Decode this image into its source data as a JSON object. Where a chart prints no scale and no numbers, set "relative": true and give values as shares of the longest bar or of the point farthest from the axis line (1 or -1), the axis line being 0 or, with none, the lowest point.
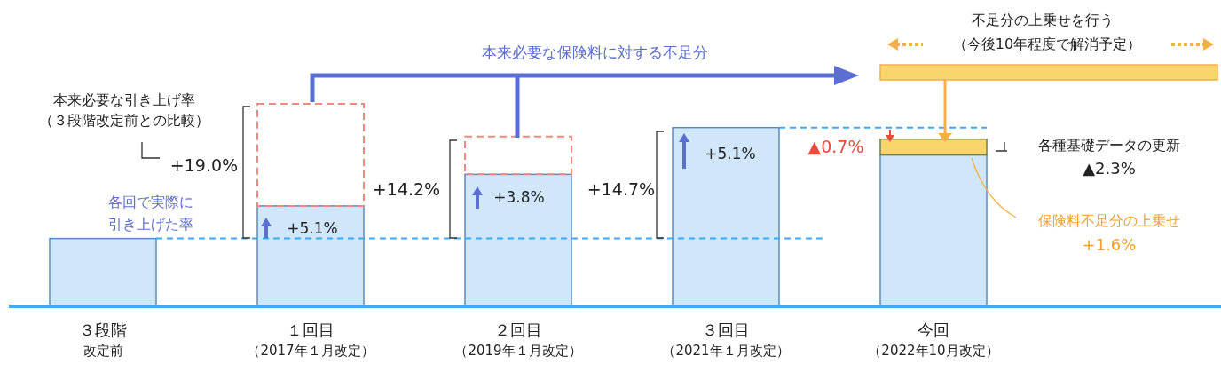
{
  "chart_data": {
    "type": "bar",
    "relative": true,
    "stacked": true,
    "categories": [
      "３段階改定前",
      "１回目（2017年１月改定）",
      "２回目（2019年１月改定）",
      "３回目（2021年１月改定）",
      "今回（2022年10月改定）"
    ],
    "series": [
      {
        "color": "#cfe6fb",
        "values": [
          0.335,
          0.496,
          0.652,
          0.883,
          0.748
        ]
      },
      {
        "color": "#f08a7e",
        "line_style": "dashed",
        "values": [
          null,
          0.504,
          0.187,
          null,
          null
        ]
      },
      {
        "color": "#f9d66b",
        "values": [
          null,
          null,
          null,
          null,
          0.078
        ]
      }
    ],
    "ref_lines": [
      {
        "axis": "y",
        "value": 0.335,
        "color": "#3fa9f5",
        "line_style": "dashed"
      },
      {
        "axis": "y",
        "value": 0.883,
        "color": "#3fa9f5",
        "line_style": "dashed"
      }
    ],
    "annotations": [
      "本来必要な引き上げ率",
      "（３段階改定前との比較）",
      "+19.0%",
      "各回で実際に",
      "引き上げた率",
      "+5.1%",
      "+14.2%",
      "+3.8%",
      "+14.7%",
      "+5.1%",
      "本来必要な保険料に対する不足分",
      "不足分の上乗せを行う",
      "（今後10年程度で解消予定）",
      "▲0.7%",
      "各種基礎データの更新",
      "▲2.3%",
      "保険料不足分の上乗せ",
      "+1.6%"
    ]
  }
}
